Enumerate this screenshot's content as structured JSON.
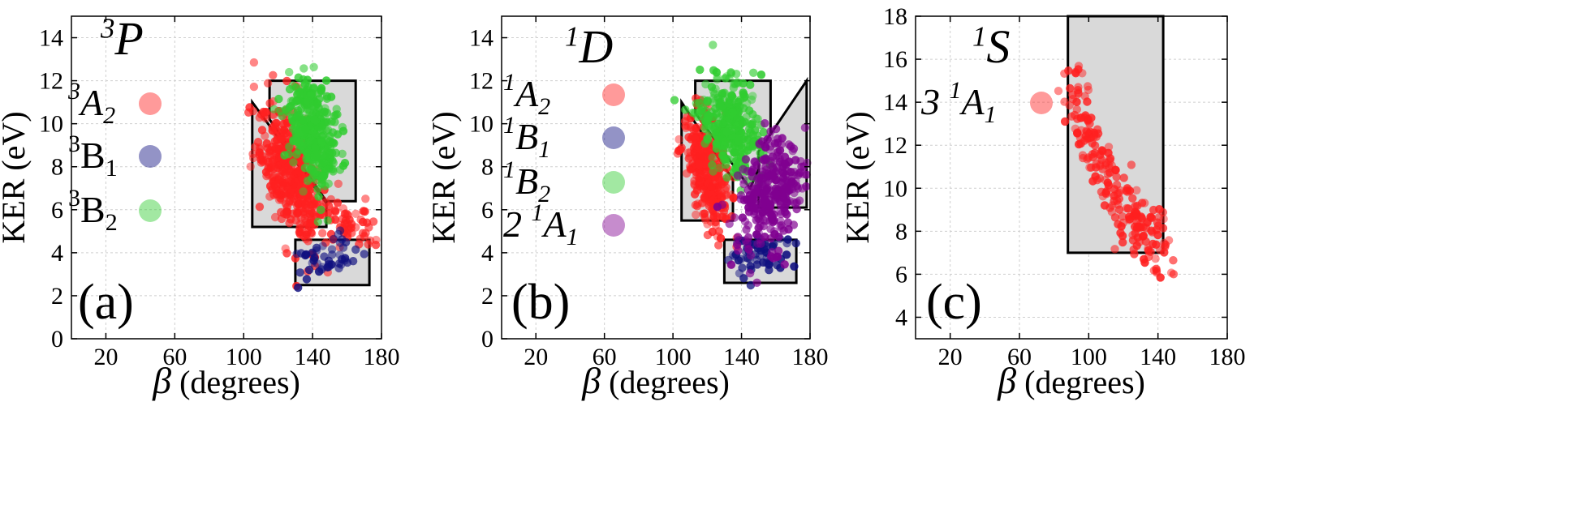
{
  "chart_data": [
    {
      "type": "scatter",
      "panel_label": "(a)",
      "state_base": "P",
      "state_sup": "3",
      "xlabel_symbol": "β",
      "xlabel_text": " (degrees)",
      "ylabel": "KER (eV)",
      "xlim": [
        0,
        180
      ],
      "ylim": [
        0,
        15
      ],
      "xticks": [
        20,
        60,
        100,
        140,
        180
      ],
      "yticks": [
        0,
        2,
        4,
        6,
        8,
        10,
        12,
        14
      ],
      "grid": true,
      "legend_placement": "left",
      "series": [
        {
          "sup": "3",
          "base": "A",
          "sub": "2",
          "italic": true,
          "color": "#ff2020",
          "clusters": [
            {
              "cx": 128,
              "cy": 7.6,
              "sx": 9,
              "sy": 1.4,
              "n": 420,
              "tilt": -0.085
            },
            {
              "cx": 163,
              "cy": 5.4,
              "sx": 8,
              "sy": 0.6,
              "n": 50,
              "tilt": 0
            }
          ]
        },
        {
          "sup": "3",
          "base": "B",
          "sub": "1",
          "italic": false,
          "color": "#101080",
          "clusters": [
            {
              "cx": 148,
              "cy": 3.6,
              "sx": 9,
              "sy": 0.6,
              "n": 45,
              "tilt": 0
            }
          ]
        },
        {
          "sup": "3",
          "base": "B",
          "sub": "2",
          "italic": false,
          "color": "#30cc30",
          "clusters": [
            {
              "cx": 140,
              "cy": 9.6,
              "sx": 7.5,
              "sy": 1.2,
              "n": 380,
              "tilt": -0.05
            }
          ]
        }
      ],
      "regions": [
        [
          [
            105,
            11
          ],
          [
            148,
            6.3
          ],
          [
            148,
            5.2
          ],
          [
            105,
            5.2
          ]
        ],
        [
          [
            115,
            12
          ],
          [
            165,
            12
          ],
          [
            165,
            6.4
          ],
          [
            148,
            6.4
          ],
          [
            115,
            10.2
          ]
        ],
        [
          [
            130,
            4.6
          ],
          [
            173,
            4.6
          ],
          [
            173,
            2.5
          ],
          [
            130,
            2.5
          ]
        ]
      ]
    },
    {
      "type": "scatter",
      "panel_label": "(b)",
      "state_base": "D",
      "state_sup": "1",
      "xlabel_symbol": "β",
      "xlabel_text": " (degrees)",
      "ylabel": "KER (eV)",
      "xlim": [
        0,
        180
      ],
      "ylim": [
        0,
        15
      ],
      "xticks": [
        20,
        60,
        100,
        140,
        180
      ],
      "yticks": [
        0,
        2,
        4,
        6,
        8,
        10,
        12,
        14
      ],
      "grid": true,
      "legend_placement": "left",
      "series": [
        {
          "sup": "1",
          "base": "A",
          "sub": "2",
          "italic": true,
          "color": "#ff2020",
          "clusters": [
            {
              "cx": 120,
              "cy": 7.8,
              "sx": 7,
              "sy": 1.2,
              "n": 320,
              "tilt": -0.08
            }
          ]
        },
        {
          "sup": "1",
          "base": "B",
          "sub": "1",
          "italic": true,
          "color": "#101080",
          "clusters": [
            {
              "cx": 150,
              "cy": 4.0,
              "sx": 9,
              "sy": 0.5,
              "n": 60,
              "tilt": 0
            }
          ]
        },
        {
          "sup": "1",
          "base": "B",
          "sub": "2",
          "italic": true,
          "color": "#30cc30",
          "clusters": [
            {
              "cx": 133,
              "cy": 10.0,
              "sx": 9,
              "sy": 1.1,
              "n": 330,
              "tilt": -0.03
            }
          ]
        },
        {
          "pre": "2",
          "sup": "1",
          "base": "A",
          "sub": "1",
          "italic": true,
          "color": "#800090",
          "clusters": [
            {
              "cx": 157,
              "cy": 6.8,
              "sx": 10,
              "sy": 1.3,
              "n": 300,
              "tilt": 0.04
            }
          ]
        }
      ],
      "regions": [
        [
          [
            105,
            11
          ],
          [
            135,
            7.4
          ],
          [
            135,
            5.5
          ],
          [
            105,
            5.5
          ]
        ],
        [
          [
            113,
            12
          ],
          [
            157,
            12
          ],
          [
            157,
            9.1
          ],
          [
            145,
            7.0
          ],
          [
            113,
            10.5
          ]
        ],
        [
          [
            150,
            6.1
          ],
          [
            178,
            6.1
          ],
          [
            178,
            12
          ],
          [
            150,
            8.7
          ]
        ],
        [
          [
            130,
            4.6
          ],
          [
            172,
            4.6
          ],
          [
            172,
            2.6
          ],
          [
            130,
            2.6
          ]
        ]
      ]
    },
    {
      "type": "scatter",
      "panel_label": "(c)",
      "state_base": "S",
      "state_sup": "1",
      "xlabel_symbol": "β",
      "xlabel_text": " (degrees)",
      "ylabel": "KER (eV)",
      "xlim": [
        0,
        180
      ],
      "ylim": [
        3,
        18
      ],
      "xticks": [
        20,
        60,
        100,
        140,
        180
      ],
      "yticks": [
        4,
        6,
        8,
        10,
        12,
        14,
        16,
        18
      ],
      "grid": true,
      "legend_placement": "left",
      "series": [
        {
          "pre": "3",
          "sup": "1",
          "base": "A",
          "sub": "1",
          "italic": true,
          "color": "#ff2020",
          "curve": {
            "x0": 90,
            "x1": 145,
            "y0": 14.5,
            "y1": 7.5,
            "spread": 0.8,
            "n": 220
          }
        }
      ],
      "regions": [
        [
          [
            88,
            18
          ],
          [
            143,
            18
          ],
          [
            143,
            7
          ],
          [
            88,
            7
          ]
        ]
      ]
    }
  ]
}
